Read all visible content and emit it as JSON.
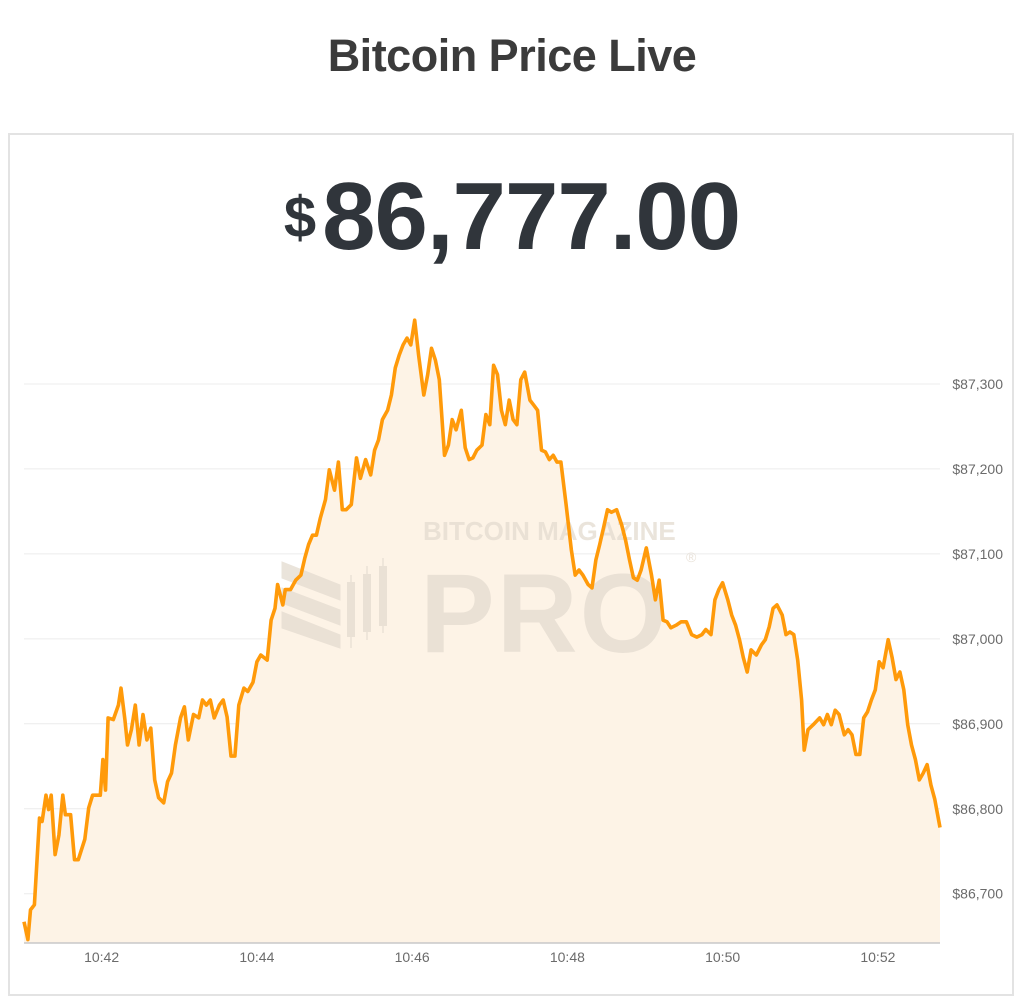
{
  "header": {
    "title": "Bitcoin Price Live"
  },
  "price": {
    "currency_symbol": "$",
    "value": "86,777.00"
  },
  "watermark": {
    "line1": "BITCOIN MAGAZINE",
    "line2": "PRO",
    "mark": "®"
  },
  "colors": {
    "line": "#ff9a0a",
    "fill": "#fdf3e6",
    "grid": "#ececec",
    "text": "#30353b"
  },
  "chart_data": {
    "type": "area",
    "title": "",
    "xlabel": "",
    "ylabel": "",
    "grid": true,
    "y_axis_position": "right",
    "xlim": [
      "10:41:00",
      "10:52:48"
    ],
    "ylim": [
      86642,
      87400
    ],
    "x_ticks": [
      "10:42",
      "10:44",
      "10:46",
      "10:48",
      "10:50",
      "10:52"
    ],
    "y_ticks": [
      87300,
      87200,
      87100,
      87000,
      86900,
      86800,
      86700
    ],
    "y_tick_labels": [
      "$87,300",
      "$87,200",
      "$87,100",
      "$87,000",
      "$86,900",
      "$86,800",
      "$86,700"
    ],
    "series": [
      {
        "x": [
          "10:41:00",
          "10:41:03",
          "10:41:05",
          "10:41:08",
          "10:41:12",
          "10:41:14",
          "10:41:17",
          "10:41:19",
          "10:41:21",
          "10:41:24",
          "10:41:27",
          "10:41:30",
          "10:41:32",
          "10:41:36",
          "10:41:39",
          "10:41:42",
          "10:41:47",
          "10:41:50",
          "10:41:53",
          "10:41:57",
          "10:41:59",
          "10:42:01",
          "10:42:03",
          "10:42:05",
          "10:42:09",
          "10:42:13",
          "10:42:15",
          "10:42:18",
          "10:42:20",
          "10:42:23",
          "10:42:26",
          "10:42:29",
          "10:42:32",
          "10:42:35",
          "10:42:38",
          "10:42:41",
          "10:42:44",
          "10:42:48",
          "10:42:51",
          "10:42:54",
          "10:42:57",
          "10:43:01",
          "10:43:04",
          "10:43:07",
          "10:43:11",
          "10:43:15",
          "10:43:18",
          "10:43:21",
          "10:43:24",
          "10:43:27",
          "10:43:31",
          "10:43:34",
          "10:43:37",
          "10:43:40",
          "10:43:43",
          "10:43:46",
          "10:43:50",
          "10:43:53",
          "10:43:57",
          "10:44:00",
          "10:44:03",
          "10:44:08",
          "10:44:11",
          "10:44:14",
          "10:44:16",
          "10:44:20",
          "10:44:22",
          "10:44:26",
          "10:44:30",
          "10:44:34",
          "10:44:37",
          "10:44:40",
          "10:44:43",
          "10:44:46",
          "10:44:49",
          "10:44:53",
          "10:44:56",
          "10:45:00",
          "10:45:03",
          "10:45:06",
          "10:45:09",
          "10:45:13",
          "10:45:17",
          "10:45:20",
          "10:45:24",
          "10:45:28",
          "10:45:31",
          "10:45:34",
          "10:45:37",
          "10:45:41",
          "10:45:44",
          "10:45:47",
          "10:45:50",
          "10:45:53",
          "10:45:56",
          "10:45:59",
          "10:46:02",
          "10:46:05",
          "10:46:09",
          "10:46:12",
          "10:46:15",
          "10:46:18",
          "10:46:21",
          "10:46:25",
          "10:46:28",
          "10:46:31",
          "10:46:34",
          "10:46:38",
          "10:46:41",
          "10:46:44",
          "10:46:47",
          "10:46:50",
          "10:46:54",
          "10:46:57",
          "10:47:00",
          "10:47:03",
          "10:47:06",
          "10:47:09",
          "10:47:12",
          "10:47:15",
          "10:47:18",
          "10:47:21",
          "10:47:24",
          "10:47:27",
          "10:47:31",
          "10:47:34",
          "10:47:37",
          "10:47:40",
          "10:47:43",
          "10:47:46",
          "10:47:49",
          "10:47:52",
          "10:47:55",
          "10:47:59",
          "10:48:03",
          "10:48:06",
          "10:48:09",
          "10:48:12",
          "10:48:16",
          "10:48:19",
          "10:48:22",
          "10:48:25",
          "10:48:28",
          "10:48:31",
          "10:48:34",
          "10:48:38",
          "10:48:42",
          "10:48:45",
          "10:48:48",
          "10:48:51",
          "10:48:54",
          "10:48:57",
          "10:49:01",
          "10:49:05",
          "10:49:08",
          "10:49:11",
          "10:49:14",
          "10:49:17",
          "10:49:20",
          "10:49:24",
          "10:49:28",
          "10:49:32",
          "10:49:36",
          "10:49:40",
          "10:49:44",
          "10:49:47",
          "10:49:51",
          "10:49:54",
          "10:49:57",
          "10:50:00",
          "10:50:04",
          "10:50:07",
          "10:50:10",
          "10:50:13",
          "10:50:16",
          "10:50:19",
          "10:50:22",
          "10:50:26",
          "10:50:30",
          "10:50:33",
          "10:50:36",
          "10:50:39",
          "10:50:42",
          "10:50:46",
          "10:50:49",
          "10:50:52",
          "10:50:55",
          "10:50:58",
          "10:51:01",
          "10:51:03",
          "10:51:06",
          "10:51:10",
          "10:51:15",
          "10:51:18",
          "10:51:21",
          "10:51:24",
          "10:51:27",
          "10:51:30",
          "10:51:34",
          "10:51:37",
          "10:51:40",
          "10:51:43",
          "10:51:46",
          "10:51:49",
          "10:51:52",
          "10:51:55",
          "10:51:58",
          "10:52:01",
          "10:52:04",
          "10:52:08",
          "10:52:11",
          "10:52:14",
          "10:52:17",
          "10:52:20",
          "10:52:23",
          "10:52:26",
          "10:52:29",
          "10:52:32",
          "10:52:35",
          "10:52:38",
          "10:52:41",
          "10:52:44",
          "10:52:48"
        ],
        "y": [
          86667,
          86646,
          86681,
          86687,
          86789,
          86785,
          86816,
          86799,
          86816,
          86746,
          86769,
          86816,
          86793,
          86793,
          86740,
          86740,
          86764,
          86801,
          86816,
          86816,
          86816,
          86858,
          86822,
          86907,
          86905,
          86922,
          86942,
          86905,
          86875,
          86893,
          86922,
          86875,
          86911,
          86881,
          86895,
          86834,
          86813,
          86807,
          86832,
          86842,
          86875,
          86907,
          86920,
          86881,
          86911,
          86907,
          86928,
          86922,
          86928,
          86907,
          86922,
          86928,
          86908,
          86862,
          86862,
          86922,
          86942,
          86938,
          86949,
          86973,
          86981,
          86975,
          87022,
          87036,
          87064,
          87040,
          87058,
          87058,
          87069,
          87075,
          87095,
          87111,
          87122,
          87122,
          87142,
          87164,
          87199,
          87175,
          87208,
          87152,
          87152,
          87158,
          87213,
          87189,
          87211,
          87193,
          87222,
          87234,
          87258,
          87269,
          87287,
          87319,
          87334,
          87346,
          87354,
          87346,
          87375,
          87334,
          87287,
          87311,
          87342,
          87328,
          87305,
          87216,
          87228,
          87258,
          87246,
          87269,
          87225,
          87211,
          87213,
          87222,
          87228,
          87264,
          87252,
          87322,
          87311,
          87269,
          87252,
          87281,
          87258,
          87252,
          87305,
          87314,
          87281,
          87275,
          87269,
          87222,
          87220,
          87211,
          87216,
          87208,
          87208,
          87158,
          87105,
          87075,
          87081,
          87075,
          87064,
          87060,
          87093,
          87111,
          87131,
          87152,
          87149,
          87152,
          87134,
          87116,
          87093,
          87072,
          87069,
          87081,
          87107,
          87075,
          87046,
          87069,
          87022,
          87020,
          87013,
          87016,
          87020,
          87020,
          87005,
          87002,
          87005,
          87011,
          87005,
          87046,
          87058,
          87066,
          87046,
          87028,
          87016,
          86999,
          86978,
          86961,
          86987,
          86981,
          86993,
          86999,
          87014,
          87036,
          87040,
          87028,
          87005,
          87008,
          87005,
          86975,
          86928,
          86869,
          86893,
          86899,
          86907,
          86899,
          86911,
          86899,
          86916,
          86911,
          86887,
          86893,
          86887,
          86864,
          86864,
          86907,
          86914,
          86928,
          86940,
          86973,
          86966,
          86999,
          86978,
          86952,
          86961,
          86940,
          86899,
          86875,
          86858,
          86834,
          86842,
          86852,
          86828,
          86811,
          86778
        ]
      }
    ]
  }
}
